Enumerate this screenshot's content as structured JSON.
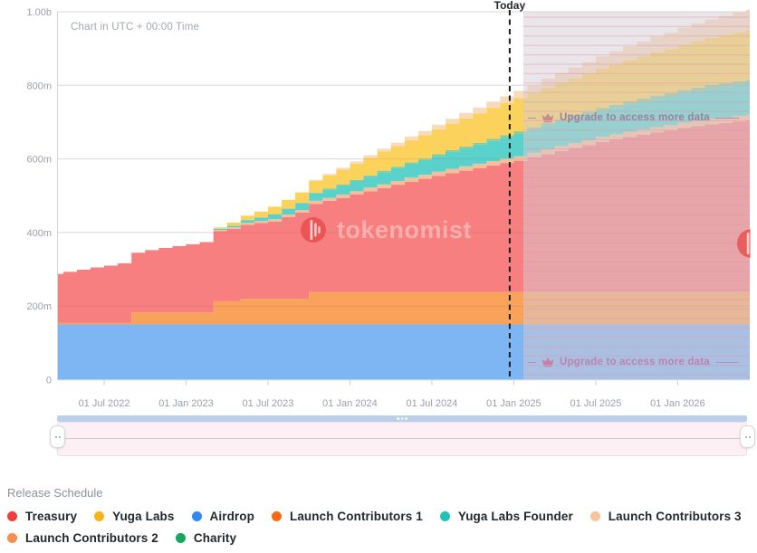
{
  "header": {
    "today_label": "Today",
    "utc_note": "Chart in UTC + 00:00 Time"
  },
  "watermark": {
    "text": "tokenomist"
  },
  "upgrade": {
    "label": "Upgrade to access more data"
  },
  "chart_data": {
    "type": "area",
    "stacked": true,
    "step": true,
    "unit": "tokens (millions)",
    "x_start": "Mar 2022",
    "x_months_total": 52,
    "today_month_index": 33.7,
    "locked_region_start_month_index": 34.7,
    "ylim": [
      0,
      1000
    ],
    "y_ticks": [
      {
        "label": "0",
        "value": 0
      },
      {
        "label": "200m",
        "value": 200
      },
      {
        "label": "400m",
        "value": 400
      },
      {
        "label": "600m",
        "value": 600
      },
      {
        "label": "800m",
        "value": 800
      },
      {
        "label": "1.00b",
        "value": 1000
      }
    ],
    "x_ticks": [
      {
        "label": "01 Jul 2022",
        "month_index": 4
      },
      {
        "label": "01 Jan 2023",
        "month_index": 10
      },
      {
        "label": "01 Jul 2023",
        "month_index": 16
      },
      {
        "label": "01 Jan 2024",
        "month_index": 22
      },
      {
        "label": "01 Jul 2024",
        "month_index": 28
      },
      {
        "label": "01 Jan 2025",
        "month_index": 34
      },
      {
        "label": "01 Jul 2025",
        "month_index": 40
      },
      {
        "label": "01 Jan 2026",
        "month_index": 46
      }
    ],
    "series": [
      {
        "name": "Airdrop",
        "color": "#2e8bf3",
        "area_color": "#7eb5f3",
        "values": [
          150,
          150,
          150,
          150,
          150,
          150,
          150,
          150,
          150,
          150,
          150,
          150,
          150,
          150,
          150,
          150,
          150,
          150,
          150,
          150,
          150,
          150,
          150,
          150,
          150,
          150,
          150,
          150,
          150,
          150,
          150,
          150,
          150,
          150,
          150,
          150,
          150,
          150,
          150,
          150,
          150,
          150,
          150,
          150,
          150,
          150,
          150,
          150,
          150,
          150,
          150,
          150
        ]
      },
      {
        "name": "Launch Contributors 2",
        "color": "#f78e4d",
        "area_color": "#f9a25c",
        "values": [
          4,
          4,
          4,
          4,
          4,
          4,
          33,
          33,
          33,
          33,
          33,
          33,
          63,
          63,
          70,
          70,
          70,
          70,
          70,
          88,
          88,
          88,
          88,
          88,
          88,
          88,
          88,
          88,
          88,
          88,
          88,
          88,
          88,
          88,
          88,
          88,
          88,
          88,
          88,
          88,
          88,
          88,
          88,
          88,
          88,
          88,
          88,
          88,
          88,
          88,
          88,
          88
        ]
      },
      {
        "name": "Treasury",
        "color": "#f13d3d",
        "area_color": "#f87f7f",
        "values": [
          133,
          139,
          145,
          151,
          156,
          162,
          162,
          169,
          175,
          180,
          185,
          191,
          191,
          197,
          201,
          206,
          210,
          222,
          234,
          240,
          248,
          256,
          265,
          274,
          283,
          292,
          300,
          308,
          316,
          323,
          330,
          337,
          344,
          351,
          357,
          366,
          375,
          384,
          392,
          400,
          408,
          415,
          422,
          428,
          434,
          440,
          446,
          451,
          456,
          460,
          464,
          467
        ]
      },
      {
        "name": "Launch Contributors 1",
        "color": "#fa6a12",
        "area_color": "#f6bf9b",
        "values": [
          0,
          0,
          0,
          0,
          0,
          0,
          0,
          0,
          0,
          0,
          0,
          0,
          3,
          4,
          5,
          5,
          6,
          7,
          7,
          8,
          8,
          9,
          9,
          10,
          10,
          10,
          11,
          11,
          11,
          12,
          12,
          12,
          12,
          12,
          12,
          13,
          13,
          13,
          13,
          13,
          14,
          14,
          14,
          14,
          14,
          14,
          15,
          15,
          15,
          15,
          15,
          15
        ]
      },
      {
        "name": "Yuga Labs Founder",
        "color": "#21c3b9",
        "area_color": "#5ad2cb",
        "values": [
          0,
          0,
          0,
          0,
          0,
          0,
          0,
          0,
          0,
          0,
          0,
          0,
          3,
          5,
          8,
          10,
          13,
          15,
          18,
          20,
          23,
          25,
          28,
          30,
          33,
          35,
          38,
          40,
          43,
          46,
          49,
          52,
          55,
          58,
          62,
          63,
          65,
          66,
          68,
          69,
          71,
          72,
          74,
          75,
          77,
          78,
          80,
          81,
          82,
          83,
          84,
          85
        ]
      },
      {
        "name": "Charity",
        "color": "#16a75c",
        "area_color": "#8aca8e",
        "values": [
          0,
          0,
          0,
          0,
          0,
          0,
          0,
          0,
          0,
          0,
          0,
          0,
          0,
          0,
          0,
          0,
          1,
          1,
          2,
          2,
          2,
          3,
          3,
          3,
          4,
          4,
          4,
          4,
          5,
          5,
          5,
          5,
          6,
          6,
          6,
          6,
          7,
          7,
          7,
          8,
          8,
          8,
          8,
          9,
          9,
          9,
          9,
          9,
          10,
          10,
          10,
          10
        ]
      },
      {
        "name": "Yuga Labs",
        "color": "#fcb216",
        "area_color": "#fbd25c",
        "values": [
          0,
          0,
          0,
          0,
          0,
          0,
          0,
          0,
          0,
          0,
          0,
          0,
          4,
          8,
          12,
          16,
          20,
          24,
          28,
          32,
          36,
          40,
          44,
          48,
          52,
          56,
          60,
          64,
          68,
          72,
          76,
          80,
          84,
          87,
          90,
          93,
          96,
          99,
          101,
          104,
          107,
          110,
          112,
          115,
          118,
          120,
          123,
          126,
          128,
          131,
          133,
          135
        ]
      },
      {
        "name": "Launch Contributors 3",
        "color": "#f8c49f",
        "area_color": "#f8dabd",
        "values": [
          0,
          0,
          0,
          0,
          0,
          0,
          0,
          0,
          0,
          0,
          0,
          0,
          0,
          0,
          0,
          0,
          0,
          0,
          0,
          3,
          4,
          5,
          6,
          7,
          8,
          9,
          10,
          11,
          12,
          13,
          15,
          16,
          17,
          18,
          20,
          22,
          24,
          27,
          29,
          31,
          33,
          35,
          38,
          40,
          42,
          44,
          46,
          48,
          50,
          52,
          54,
          56
        ]
      }
    ]
  },
  "navigator": {
    "range_bar_color": "#b9cfea",
    "track_color": "#fdf0f5"
  },
  "legend": {
    "title": "Release Schedule",
    "items": [
      {
        "label": "Treasury",
        "color": "#f13d3d"
      },
      {
        "label": "Yuga Labs",
        "color": "#fcb216"
      },
      {
        "label": "Airdrop",
        "color": "#2e8bf3"
      },
      {
        "label": "Launch Contributors 1",
        "color": "#fa6a12"
      },
      {
        "label": "Yuga Labs Founder",
        "color": "#21c3b9"
      },
      {
        "label": "Launch Contributors 3",
        "color": "#f8c49f"
      },
      {
        "label": "Launch Contributors 2",
        "color": "#f78e4d"
      },
      {
        "label": "Charity",
        "color": "#16a75c"
      }
    ]
  },
  "colors": {
    "grid": "#ebebeb",
    "axis": "#d4d7da",
    "tick_label": "#9ba1a8",
    "today_line": "#1a1d21",
    "locked_overlay": "rgba(213,204,212,0.50)",
    "locked_stripe": "rgba(224,148,170,0.40)",
    "logo_red": "#ea5050"
  }
}
